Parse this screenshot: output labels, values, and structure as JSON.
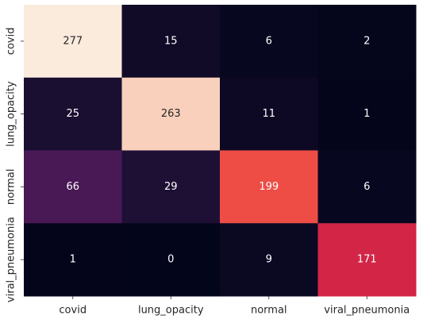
{
  "chart_data": {
    "type": "heatmap",
    "title": "",
    "xlabel": "",
    "ylabel": "",
    "x_categories": [
      "covid",
      "lung_opacity",
      "normal",
      "viral_pneumonia"
    ],
    "y_categories": [
      "covid",
      "lung_opacity",
      "normal",
      "viral_pneumonia"
    ],
    "values": [
      [
        277,
        15,
        6,
        2
      ],
      [
        25,
        263,
        11,
        1
      ],
      [
        66,
        29,
        199,
        6
      ],
      [
        1,
        0,
        9,
        171
      ]
    ],
    "color_range": [
      0,
      277
    ],
    "colormap": "rocket",
    "colorbar": false,
    "grid": false,
    "annotations": true,
    "colors": {
      "light_text": "#ffffff",
      "dark_text": "#262626",
      "tick_text": "#262626"
    }
  }
}
